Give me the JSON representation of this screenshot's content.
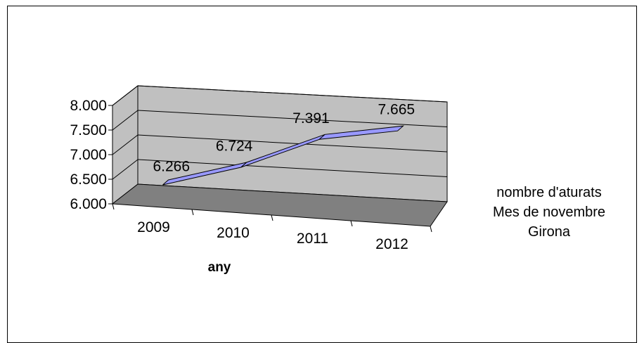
{
  "chart_data": {
    "type": "line",
    "categories": [
      "2009",
      "2010",
      "2011",
      "2012"
    ],
    "series": [
      {
        "name": "nombre d'aturats Mes de novembre Girona",
        "values": [
          6266,
          6724,
          7391,
          7665
        ],
        "color": "#9999ff"
      }
    ],
    "data_labels": [
      "6.266",
      "6.724",
      "7.391",
      "7.665"
    ],
    "y_tick_labels": [
      "6.000",
      "6.500",
      "7.000",
      "7.500",
      "8.000"
    ],
    "y_ticks": [
      6000,
      6500,
      7000,
      7500,
      8000
    ],
    "ylim": [
      6000,
      8000
    ],
    "xlabel": "any",
    "ylabel": "",
    "title": "",
    "legend": {
      "lines": [
        "nombre d'aturats",
        "Mes de novembre",
        "Girona"
      ],
      "placement": "right"
    },
    "three_d": true,
    "grid": true,
    "wall_color": "#c0c0c0",
    "floor_color": "#808080"
  }
}
